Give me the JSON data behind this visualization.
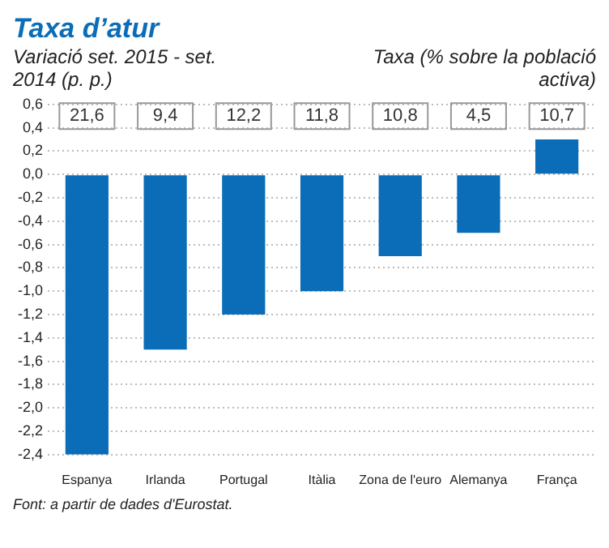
{
  "chart_data": {
    "type": "bar",
    "title": "Taxa d’atur",
    "subtitle": "Variació set. 2015 - set. 2014 (p. p.)",
    "categories": [
      "Espanya",
      "Irlanda",
      "Portugal",
      "Itàlia",
      "Zona de l'euro",
      "Alemanya",
      "França"
    ],
    "values": [
      -2.4,
      -1.5,
      -1.2,
      -1.0,
      -0.7,
      -0.5,
      0.3
    ],
    "color": "#0b6db7",
    "ylim": [
      -2.4,
      0.6
    ],
    "yticks": [
      {
        "value": -2.4,
        "label": "-2,4"
      },
      {
        "value": -2.2,
        "label": "-2,2"
      },
      {
        "value": -2.0,
        "label": "-2,0"
      },
      {
        "value": -1.8,
        "label": "-1,8"
      },
      {
        "value": -1.6,
        "label": "-1,6"
      },
      {
        "value": -1.4,
        "label": "-1,4"
      },
      {
        "value": -1.2,
        "label": "-1,2"
      },
      {
        "value": -1.0,
        "label": "-1,0"
      },
      {
        "value": -0.8,
        "label": "-0,8"
      },
      {
        "value": -0.6,
        "label": "-0,6"
      },
      {
        "value": -0.4,
        "label": "-0,4"
      },
      {
        "value": -0.2,
        "label": "-0,2"
      },
      {
        "value": 0,
        "label": "0,0"
      },
      {
        "value": 0.2,
        "label": "0,2"
      },
      {
        "value": 0.4,
        "label": "0,4"
      },
      {
        "value": 0.6,
        "label": "0,6"
      }
    ],
    "grid": "y",
    "annotations": [
      "Taxa (% sobre la població activa)",
      "Font: a partir de dades d'Eurostat.",
      {
        "text": "21,6",
        "x": "Espanya",
        "y": 0.5
      },
      {
        "text": "9,4",
        "x": "Irlanda",
        "y": 0.5
      },
      {
        "text": "12,2",
        "x": "Portugal",
        "y": 0.5
      },
      {
        "text": "11,8",
        "x": "Itàlia",
        "y": 0.5
      },
      {
        "text": "10,8",
        "x": "Zona de l'euro",
        "y": 0.5
      },
      {
        "text": "4,5",
        "x": "Alemanya",
        "y": 0.5
      },
      {
        "text": "10,7",
        "x": "França",
        "y": 0.5
      }
    ]
  }
}
